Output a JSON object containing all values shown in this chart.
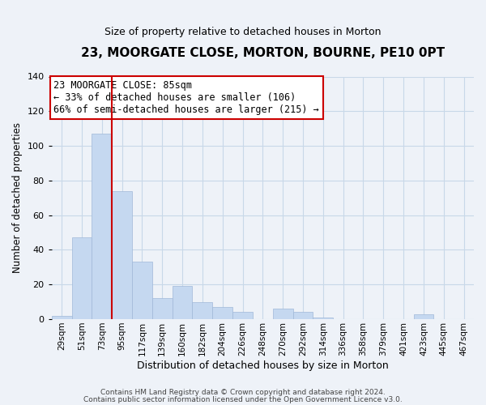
{
  "title": "23, MOORGATE CLOSE, MORTON, BOURNE, PE10 0PT",
  "subtitle": "Size of property relative to detached houses in Morton",
  "xlabel": "Distribution of detached houses by size in Morton",
  "ylabel": "Number of detached properties",
  "bin_labels": [
    "29sqm",
    "51sqm",
    "73sqm",
    "95sqm",
    "117sqm",
    "139sqm",
    "160sqm",
    "182sqm",
    "204sqm",
    "226sqm",
    "248sqm",
    "270sqm",
    "292sqm",
    "314sqm",
    "336sqm",
    "358sqm",
    "379sqm",
    "401sqm",
    "423sqm",
    "445sqm",
    "467sqm"
  ],
  "bar_heights": [
    2,
    47,
    107,
    74,
    33,
    12,
    19,
    10,
    7,
    4,
    0,
    6,
    4,
    1,
    0,
    0,
    0,
    0,
    3,
    0,
    0
  ],
  "bar_color": "#c5d8f0",
  "bar_edge_color": "#a0b8d8",
  "grid_color": "#c8d8e8",
  "vline_x_idx": 2,
  "vline_color": "#cc0000",
  "annotation_title": "23 MOORGATE CLOSE: 85sqm",
  "annotation_line1": "← 33% of detached houses are smaller (106)",
  "annotation_line2": "66% of semi-detached houses are larger (215) →",
  "annotation_box_color": "#ffffff",
  "annotation_box_edge": "#cc0000",
  "ylim": [
    0,
    140
  ],
  "yticks": [
    0,
    20,
    40,
    60,
    80,
    100,
    120,
    140
  ],
  "footer1": "Contains HM Land Registry data © Crown copyright and database right 2024.",
  "footer2": "Contains public sector information licensed under the Open Government Licence v3.0.",
  "background_color": "#eef2f8",
  "title_fontsize": 11,
  "subtitle_fontsize": 9
}
